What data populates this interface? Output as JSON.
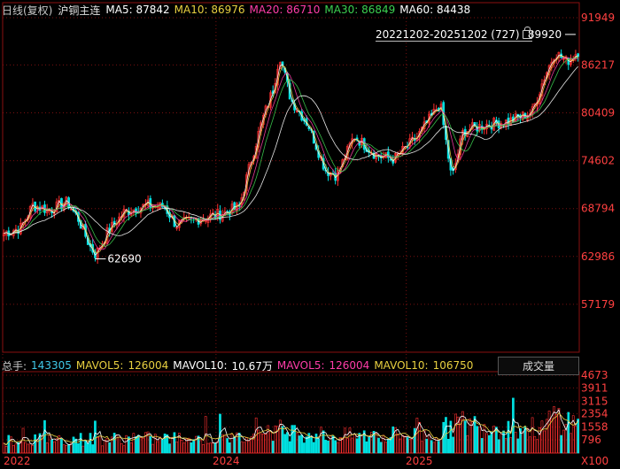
{
  "header": {
    "period": "日线(复权)",
    "symbol": "沪铜主连",
    "ma": [
      {
        "label": "MA5:",
        "value": "87842",
        "color": "#ffffff"
      },
      {
        "label": "MA10:",
        "value": "86976",
        "color": "#e8d040"
      },
      {
        "label": "MA20:",
        "value": "86710",
        "color": "#ff3da8"
      },
      {
        "label": "MA30:",
        "value": "86849",
        "color": "#3cd050"
      },
      {
        "label": "MA60:",
        "value": "84438",
        "color": "#ffffff"
      }
    ]
  },
  "range_label": "20221202-20251202 (727)",
  "volume_header": {
    "total_label": "总手:",
    "total_value": "143305",
    "mavol5_label": "MAVOL5:",
    "mavol5_value": "126004",
    "mavol10_label": "MAVOL10:",
    "mavol10_value": "10.67万",
    "mavol5b_label": "MAVOL5:",
    "mavol5b_value": "126004",
    "mavol10b_label": "MAVOL10:",
    "mavol10b_value": "106750",
    "selector": "成交量"
  },
  "colors": {
    "up": "#ff3030",
    "down": "#00e0e0",
    "axis_text": "#ff4040",
    "grid": "#7a1010"
  },
  "chart_data": {
    "type": "candlestick",
    "title": "",
    "n_bars": 727,
    "date_range": [
      "2022-12-02",
      "2025-12-02"
    ],
    "x_tick_labels": [
      "2022",
      "2024",
      "2025"
    ],
    "price_ticks": [
      91949,
      86217,
      80409,
      74602,
      68794,
      62986,
      57179
    ],
    "price_ylim": [
      51371,
      91949
    ],
    "volume_ticks": [
      4673,
      3911,
      3115,
      2354,
      1558,
      796
    ],
    "volume_unit": "X100",
    "volume_ylim": [
      0,
      4673
    ],
    "annotations": [
      {
        "label": "62690",
        "value": 62690,
        "note": "low"
      },
      {
        "label": "89920",
        "value": 89920,
        "note": "high"
      }
    ],
    "price_anchors": [
      {
        "x": 0.0,
        "close": 65800
      },
      {
        "x": 0.03,
        "close": 66500
      },
      {
        "x": 0.05,
        "close": 69200
      },
      {
        "x": 0.08,
        "close": 68600
      },
      {
        "x": 0.11,
        "close": 69600
      },
      {
        "x": 0.13,
        "close": 67500
      },
      {
        "x": 0.15,
        "close": 64200
      },
      {
        "x": 0.16,
        "close": 63200
      },
      {
        "x": 0.18,
        "close": 65900
      },
      {
        "x": 0.21,
        "close": 68400
      },
      {
        "x": 0.25,
        "close": 69200
      },
      {
        "x": 0.28,
        "close": 69000
      },
      {
        "x": 0.3,
        "close": 66800
      },
      {
        "x": 0.33,
        "close": 67400
      },
      {
        "x": 0.38,
        "close": 68200
      },
      {
        "x": 0.41,
        "close": 69000
      },
      {
        "x": 0.43,
        "close": 74500
      },
      {
        "x": 0.45,
        "close": 79500
      },
      {
        "x": 0.47,
        "close": 83500
      },
      {
        "x": 0.48,
        "close": 87500
      },
      {
        "x": 0.5,
        "close": 82000
      },
      {
        "x": 0.53,
        "close": 79000
      },
      {
        "x": 0.56,
        "close": 73500
      },
      {
        "x": 0.58,
        "close": 72800
      },
      {
        "x": 0.61,
        "close": 77600
      },
      {
        "x": 0.65,
        "close": 75200
      },
      {
        "x": 0.68,
        "close": 74800
      },
      {
        "x": 0.72,
        "close": 77500
      },
      {
        "x": 0.76,
        "close": 81500
      },
      {
        "x": 0.78,
        "close": 72300
      },
      {
        "x": 0.8,
        "close": 78200
      },
      {
        "x": 0.84,
        "close": 79000
      },
      {
        "x": 0.88,
        "close": 79400
      },
      {
        "x": 0.92,
        "close": 80500
      },
      {
        "x": 0.94,
        "close": 84500
      },
      {
        "x": 0.96,
        "close": 87800
      },
      {
        "x": 0.98,
        "close": 86600
      },
      {
        "x": 1.0,
        "close": 87900
      }
    ],
    "volume_profile": [
      {
        "x": 0.0,
        "vol": 800
      },
      {
        "x": 0.41,
        "vol": 900
      },
      {
        "x": 0.43,
        "vol": 1500
      },
      {
        "x": 0.5,
        "vol": 1300
      },
      {
        "x": 0.58,
        "vol": 1000
      },
      {
        "x": 0.76,
        "vol": 1100
      },
      {
        "x": 0.78,
        "vol": 1800
      },
      {
        "x": 0.94,
        "vol": 1400
      },
      {
        "x": 0.96,
        "vol": 2300
      },
      {
        "x": 1.0,
        "vol": 1600
      }
    ]
  }
}
